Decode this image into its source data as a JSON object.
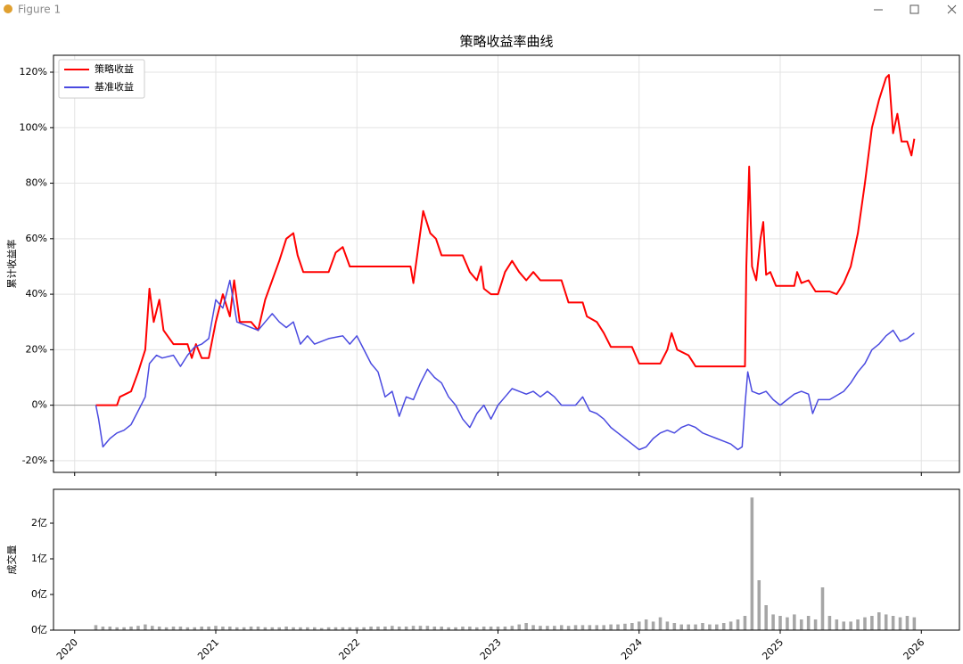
{
  "window_title": "Figure 1",
  "chart_data": [
    {
      "type": "line",
      "title": "策略收益率曲线",
      "ylabel": "累计收益率",
      "grid": true,
      "legend": "upper left",
      "hline": 0,
      "xlim": [
        2019.85,
        2026.27
      ],
      "xticks": [
        2020,
        2021,
        2022,
        2023,
        2024,
        2025,
        2026
      ],
      "ylim": [
        -24.2,
        126.1
      ],
      "yticks": [
        {
          "value": -20,
          "label": "-20%"
        },
        {
          "value": 0,
          "label": "0%"
        },
        {
          "value": 20,
          "label": "20%"
        },
        {
          "value": 40,
          "label": "40%"
        },
        {
          "value": 60,
          "label": "60%"
        },
        {
          "value": 80,
          "label": "80%"
        },
        {
          "value": 100,
          "label": "100%"
        },
        {
          "value": 120,
          "label": "120%"
        }
      ],
      "series": [
        {
          "name": "策略收益",
          "color": "#ff0000",
          "x": [
            2020.15,
            2020.3,
            2020.32,
            2020.4,
            2020.45,
            2020.5,
            2020.53,
            2020.56,
            2020.6,
            2020.63,
            2020.7,
            2020.8,
            2020.83,
            2020.86,
            2020.9,
            2020.95,
            2021.0,
            2021.05,
            2021.1,
            2021.13,
            2021.17,
            2021.25,
            2021.3,
            2021.35,
            2021.4,
            2021.45,
            2021.5,
            2021.55,
            2021.58,
            2021.62,
            2021.8,
            2021.85,
            2021.9,
            2021.95,
            2022.1,
            2022.3,
            2022.38,
            2022.4,
            2022.43,
            2022.47,
            2022.52,
            2022.56,
            2022.6,
            2022.75,
            2022.8,
            2022.85,
            2022.88,
            2022.9,
            2022.95,
            2023.0,
            2023.05,
            2023.1,
            2023.15,
            2023.2,
            2023.25,
            2023.3,
            2023.45,
            2023.5,
            2023.6,
            2023.63,
            2023.7,
            2023.75,
            2023.8,
            2023.95,
            2024.0,
            2024.15,
            2024.2,
            2024.23,
            2024.27,
            2024.35,
            2024.4,
            2024.75,
            2024.76,
            2024.78,
            2024.8,
            2024.83,
            2024.86,
            2024.88,
            2024.9,
            2024.93,
            2024.97,
            2025.1,
            2025.12,
            2025.15,
            2025.2,
            2025.25,
            2025.35,
            2025.4,
            2025.45,
            2025.5,
            2025.55,
            2025.6,
            2025.65,
            2025.7,
            2025.75,
            2025.77,
            2025.8,
            2025.83,
            2025.86,
            2025.9,
            2025.93,
            2025.95
          ],
          "values": [
            0,
            0,
            3,
            5,
            12,
            20,
            42,
            30,
            38,
            27,
            22,
            22,
            17,
            22,
            17,
            17,
            30,
            40,
            32,
            45,
            30,
            30,
            27,
            38,
            45,
            52,
            60,
            62,
            54,
            48,
            48,
            55,
            57,
            50,
            50,
            50,
            50,
            44,
            55,
            70,
            62,
            60,
            54,
            54,
            48,
            45,
            50,
            42,
            40,
            40,
            48,
            52,
            48,
            45,
            48,
            45,
            45,
            37,
            37,
            32,
            30,
            26,
            21,
            21,
            15,
            15,
            20,
            26,
            20,
            18,
            14,
            14,
            50,
            86,
            50,
            45,
            60,
            66,
            47,
            48,
            43,
            43,
            48,
            44,
            45,
            41,
            41,
            40,
            44,
            50,
            62,
            80,
            100,
            110,
            118,
            119,
            98,
            105,
            95,
            95,
            90,
            96
          ]
        },
        {
          "name": "基准收益",
          "color": "#4a4ae0",
          "x": [
            2020.15,
            2020.17,
            2020.2,
            2020.25,
            2020.3,
            2020.35,
            2020.4,
            2020.45,
            2020.5,
            2020.53,
            2020.58,
            2020.62,
            2020.7,
            2020.75,
            2020.8,
            2020.85,
            2020.9,
            2020.95,
            2021.0,
            2021.05,
            2021.1,
            2021.15,
            2021.25,
            2021.3,
            2021.35,
            2021.4,
            2021.45,
            2021.5,
            2021.55,
            2021.6,
            2021.65,
            2021.7,
            2021.8,
            2021.9,
            2021.95,
            2022.0,
            2022.05,
            2022.1,
            2022.15,
            2022.2,
            2022.25,
            2022.3,
            2022.35,
            2022.4,
            2022.45,
            2022.5,
            2022.55,
            2022.6,
            2022.65,
            2022.7,
            2022.75,
            2022.8,
            2022.85,
            2022.9,
            2022.95,
            2023.0,
            2023.05,
            2023.1,
            2023.15,
            2023.2,
            2023.25,
            2023.3,
            2023.35,
            2023.4,
            2023.45,
            2023.5,
            2023.55,
            2023.6,
            2023.65,
            2023.7,
            2023.75,
            2023.8,
            2023.85,
            2023.9,
            2023.95,
            2024.0,
            2024.05,
            2024.1,
            2024.15,
            2024.2,
            2024.25,
            2024.3,
            2024.35,
            2024.4,
            2024.45,
            2024.5,
            2024.55,
            2024.6,
            2024.65,
            2024.7,
            2024.73,
            2024.75,
            2024.77,
            2024.8,
            2024.85,
            2024.9,
            2024.95,
            2025.0,
            2025.05,
            2025.1,
            2025.15,
            2025.2,
            2025.23,
            2025.27,
            2025.35,
            2025.45,
            2025.5,
            2025.55,
            2025.6,
            2025.65,
            2025.7,
            2025.75,
            2025.8,
            2025.85,
            2025.9,
            2025.95
          ],
          "values": [
            0,
            -5,
            -15,
            -12,
            -10,
            -9,
            -7,
            -2,
            3,
            15,
            18,
            17,
            18,
            14,
            18,
            21,
            22,
            24,
            38,
            35,
            45,
            30,
            28,
            27,
            30,
            33,
            30,
            28,
            30,
            22,
            25,
            22,
            24,
            25,
            22,
            25,
            20,
            15,
            12,
            3,
            5,
            -4,
            3,
            2,
            8,
            13,
            10,
            8,
            3,
            0,
            -5,
            -8,
            -3,
            0,
            -5,
            0,
            3,
            6,
            5,
            4,
            5,
            3,
            5,
            3,
            0,
            0,
            0,
            3,
            -2,
            -3,
            -5,
            -8,
            -10,
            -12,
            -14,
            -16,
            -15,
            -12,
            -10,
            -9,
            -10,
            -8,
            -7,
            -8,
            -10,
            -11,
            -12,
            -13,
            -14,
            -16,
            -15,
            0,
            12,
            5,
            4,
            5,
            2,
            0,
            2,
            4,
            5,
            4,
            -3,
            2,
            2,
            5,
            8,
            12,
            15,
            20,
            22,
            25,
            27,
            23,
            24,
            26
          ]
        }
      ]
    },
    {
      "type": "bar",
      "ylabel": "成交量",
      "color": "#808080",
      "xlim": [
        2019.85,
        2026.27
      ],
      "xticks": [
        2020,
        2021,
        2022,
        2023,
        2024,
        2025,
        2026
      ],
      "ylim": [
        0,
        1.975
      ],
      "yticks": [
        {
          "value": 0,
          "label": "0亿"
        },
        {
          "value": 0.5,
          "label": "0亿"
        },
        {
          "value": 1,
          "label": "1亿"
        },
        {
          "value": 1.5,
          "label": "2亿"
        }
      ],
      "x": [
        2020.15,
        2020.2,
        2020.25,
        2020.3,
        2020.35,
        2020.4,
        2020.45,
        2020.5,
        2020.55,
        2020.6,
        2020.65,
        2020.7,
        2020.75,
        2020.8,
        2020.85,
        2020.9,
        2020.95,
        2021.0,
        2021.05,
        2021.1,
        2021.15,
        2021.2,
        2021.25,
        2021.3,
        2021.35,
        2021.4,
        2021.45,
        2021.5,
        2021.55,
        2021.6,
        2021.65,
        2021.7,
        2021.75,
        2021.8,
        2021.85,
        2021.9,
        2021.95,
        2022.0,
        2022.05,
        2022.1,
        2022.15,
        2022.2,
        2022.25,
        2022.3,
        2022.35,
        2022.4,
        2022.45,
        2022.5,
        2022.55,
        2022.6,
        2022.65,
        2022.7,
        2022.75,
        2022.8,
        2022.85,
        2022.9,
        2022.95,
        2023.0,
        2023.05,
        2023.1,
        2023.15,
        2023.2,
        2023.25,
        2023.3,
        2023.35,
        2023.4,
        2023.45,
        2023.5,
        2023.55,
        2023.6,
        2023.65,
        2023.7,
        2023.75,
        2023.8,
        2023.85,
        2023.9,
        2023.95,
        2024.0,
        2024.05,
        2024.1,
        2024.15,
        2024.2,
        2024.25,
        2024.3,
        2024.35,
        2024.4,
        2024.45,
        2024.5,
        2024.55,
        2024.6,
        2024.65,
        2024.7,
        2024.75,
        2024.8,
        2024.85,
        2024.9,
        2024.95,
        2025.0,
        2025.05,
        2025.1,
        2025.15,
        2025.2,
        2025.25,
        2025.3,
        2025.35,
        2025.4,
        2025.45,
        2025.5,
        2025.55,
        2025.6,
        2025.65,
        2025.7,
        2025.75,
        2025.8,
        2025.85,
        2025.9,
        2025.95
      ],
      "values": [
        0.07,
        0.05,
        0.05,
        0.04,
        0.04,
        0.05,
        0.06,
        0.08,
        0.06,
        0.05,
        0.04,
        0.05,
        0.05,
        0.04,
        0.04,
        0.05,
        0.05,
        0.06,
        0.05,
        0.05,
        0.04,
        0.04,
        0.05,
        0.05,
        0.04,
        0.04,
        0.04,
        0.05,
        0.04,
        0.04,
        0.04,
        0.04,
        0.03,
        0.04,
        0.04,
        0.04,
        0.04,
        0.04,
        0.04,
        0.05,
        0.05,
        0.05,
        0.06,
        0.05,
        0.05,
        0.06,
        0.06,
        0.06,
        0.05,
        0.05,
        0.04,
        0.04,
        0.05,
        0.05,
        0.04,
        0.05,
        0.05,
        0.05,
        0.05,
        0.06,
        0.08,
        0.1,
        0.07,
        0.06,
        0.06,
        0.06,
        0.07,
        0.06,
        0.07,
        0.07,
        0.07,
        0.07,
        0.07,
        0.08,
        0.08,
        0.09,
        0.1,
        0.12,
        0.15,
        0.12,
        0.18,
        0.12,
        0.1,
        0.08,
        0.08,
        0.08,
        0.1,
        0.08,
        0.08,
        0.1,
        0.12,
        0.15,
        0.2,
        1.86,
        0.7,
        0.35,
        0.22,
        0.2,
        0.18,
        0.22,
        0.15,
        0.2,
        0.15,
        0.6,
        0.2,
        0.15,
        0.12,
        0.12,
        0.15,
        0.18,
        0.2,
        0.25,
        0.22,
        0.2,
        0.18,
        0.2,
        0.18
      ]
    }
  ]
}
